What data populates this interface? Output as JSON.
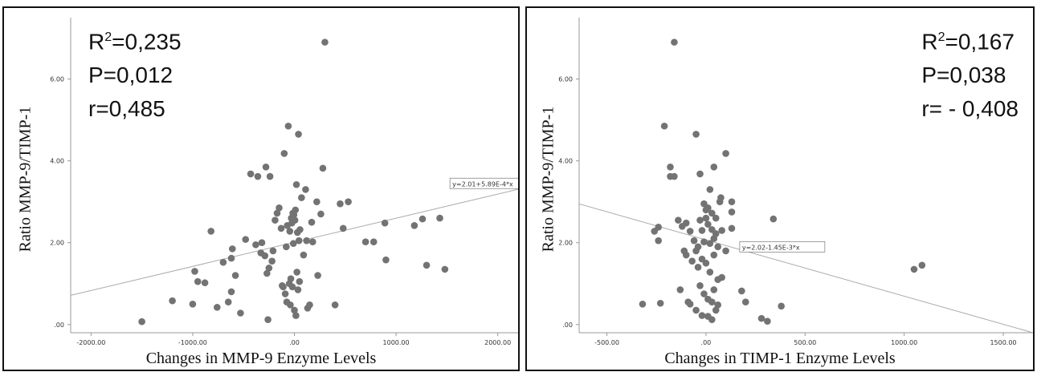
{
  "chart_data": [
    {
      "type": "scatter",
      "xlabel": "Changes in MMP-9 Enzyme Levels",
      "ylabel": "Ratio MMP-9/TIMP-1",
      "xlim": [
        -2200,
        2200
      ],
      "ylim": [
        -0.2,
        7.5
      ],
      "x_ticks": [
        -2000,
        -1000,
        0,
        1000,
        2000
      ],
      "x_tick_labels": [
        "-2000.00",
        "-1000.00",
        ".00",
        "1000.00",
        "2000.00"
      ],
      "y_ticks": [
        0,
        2,
        4,
        6
      ],
      "y_tick_labels": [
        ".00",
        "2.00",
        "4.00",
        "6.00"
      ],
      "stats": {
        "r2_label": "R",
        "r2_value": "=0,235",
        "p": "P=0,012",
        "r": "r=0,485"
      },
      "fit": {
        "intercept": 2.01,
        "slope": 0.000589,
        "label": "y=2.01+5.89E-4*x"
      },
      "points": [
        [
          -1500,
          0.07
        ],
        [
          -1200,
          0.58
        ],
        [
          -1000,
          0.5
        ],
        [
          -980,
          1.3
        ],
        [
          -950,
          1.05
        ],
        [
          -880,
          1.02
        ],
        [
          -820,
          2.28
        ],
        [
          -760,
          0.42
        ],
        [
          -700,
          1.52
        ],
        [
          -650,
          0.55
        ],
        [
          -620,
          1.62
        ],
        [
          -610,
          1.85
        ],
        [
          -620,
          0.8
        ],
        [
          -580,
          1.2
        ],
        [
          -530,
          0.28
        ],
        [
          -480,
          2.08
        ],
        [
          -430,
          3.68
        ],
        [
          -380,
          1.95
        ],
        [
          -360,
          3.62
        ],
        [
          -330,
          1.75
        ],
        [
          -320,
          2.0
        ],
        [
          -290,
          1.68
        ],
        [
          -280,
          3.85
        ],
        [
          -270,
          1.25
        ],
        [
          -250,
          1.38
        ],
        [
          -260,
          0.12
        ],
        [
          -240,
          3.62
        ],
        [
          -220,
          1.55
        ],
        [
          -210,
          1.8
        ],
        [
          -190,
          2.55
        ],
        [
          -170,
          2.72
        ],
        [
          -150,
          2.85
        ],
        [
          -130,
          2.35
        ],
        [
          -120,
          0.95
        ],
        [
          -110,
          0.92
        ],
        [
          -100,
          4.18
        ],
        [
          -90,
          0.75
        ],
        [
          -80,
          1.9
        ],
        [
          -75,
          0.55
        ],
        [
          -70,
          2.42
        ],
        [
          -60,
          4.85
        ],
        [
          -50,
          1.0
        ],
        [
          -45,
          2.28
        ],
        [
          -40,
          0.48
        ],
        [
          -35,
          1.12
        ],
        [
          -30,
          2.6
        ],
        [
          -25,
          2.48
        ],
        [
          -20,
          0.92
        ],
        [
          -15,
          2.72
        ],
        [
          -10,
          1.98
        ],
        [
          -5,
          2.68
        ],
        [
          0,
          0.35
        ],
        [
          5,
          2.55
        ],
        [
          10,
          2.8
        ],
        [
          15,
          0.22
        ],
        [
          20,
          3.42
        ],
        [
          25,
          1.28
        ],
        [
          30,
          2.25
        ],
        [
          35,
          0.85
        ],
        [
          40,
          4.65
        ],
        [
          45,
          2.05
        ],
        [
          50,
          1.05
        ],
        [
          55,
          2.32
        ],
        [
          70,
          3.1
        ],
        [
          90,
          1.7
        ],
        [
          110,
          3.3
        ],
        [
          120,
          2.05
        ],
        [
          130,
          0.4
        ],
        [
          150,
          0.48
        ],
        [
          170,
          2.5
        ],
        [
          180,
          2.02
        ],
        [
          220,
          3.0
        ],
        [
          230,
          1.2
        ],
        [
          260,
          2.7
        ],
        [
          280,
          3.82
        ],
        [
          300,
          6.9
        ],
        [
          400,
          0.48
        ],
        [
          450,
          2.95
        ],
        [
          480,
          2.35
        ],
        [
          530,
          3.0
        ],
        [
          700,
          2.02
        ],
        [
          780,
          2.02
        ],
        [
          900,
          1.58
        ],
        [
          890,
          2.48
        ],
        [
          1180,
          2.42
        ],
        [
          1260,
          2.58
        ],
        [
          1300,
          1.45
        ],
        [
          1430,
          2.6
        ],
        [
          1480,
          1.35
        ]
      ]
    },
    {
      "type": "scatter",
      "xlabel": "Changes in TIMP-1 Enzyme Levels",
      "ylabel": "Ratio MMP-9/TIMP-1",
      "xlim": [
        -640,
        1650
      ],
      "ylim": [
        -0.2,
        7.5
      ],
      "x_ticks": [
        -500,
        0,
        500,
        1000,
        1500
      ],
      "x_tick_labels": [
        "-500.00",
        ".00",
        "500.00",
        "1000.00",
        "1500.00"
      ],
      "y_ticks": [
        0,
        2,
        4,
        6
      ],
      "y_tick_labels": [
        ".00",
        "2.00",
        "4.00",
        "6.00"
      ],
      "stats": {
        "r2_label": "R",
        "r2_value": "=0,167",
        "p": "P=0,038",
        "r": "r= - 0,408"
      },
      "fit": {
        "intercept": 2.02,
        "slope": -0.00145,
        "label": "y=2.02-1.45E-3*x"
      },
      "points": [
        [
          -160,
          6.9
        ],
        [
          -210,
          4.85
        ],
        [
          -50,
          4.65
        ],
        [
          100,
          4.18
        ],
        [
          -180,
          3.85
        ],
        [
          -180,
          3.62
        ],
        [
          -160,
          3.62
        ],
        [
          -30,
          3.68
        ],
        [
          20,
          3.3
        ],
        [
          40,
          3.85
        ],
        [
          -10,
          2.95
        ],
        [
          0,
          2.8
        ],
        [
          10,
          2.85
        ],
        [
          30,
          2.72
        ],
        [
          50,
          2.6
        ],
        [
          70,
          3.0
        ],
        [
          75,
          3.1
        ],
        [
          130,
          3.0
        ],
        [
          -260,
          2.28
        ],
        [
          -240,
          2.38
        ],
        [
          -240,
          2.05
        ],
        [
          -140,
          2.55
        ],
        [
          -120,
          2.4
        ],
        [
          -100,
          2.48
        ],
        [
          -80,
          2.28
        ],
        [
          -60,
          2.05
        ],
        [
          -40,
          1.9
        ],
        [
          -30,
          2.55
        ],
        [
          -20,
          2.3
        ],
        [
          -10,
          2.02
        ],
        [
          0,
          2.6
        ],
        [
          10,
          2.45
        ],
        [
          20,
          1.98
        ],
        [
          30,
          2.32
        ],
        [
          40,
          2.1
        ],
        [
          50,
          2.22
        ],
        [
          60,
          1.9
        ],
        [
          80,
          2.3
        ],
        [
          100,
          1.8
        ],
        [
          130,
          2.75
        ],
        [
          130,
          2.35
        ],
        [
          -110,
          1.8
        ],
        [
          -100,
          1.7
        ],
        [
          -70,
          1.55
        ],
        [
          -50,
          1.8
        ],
        [
          -40,
          1.4
        ],
        [
          -20,
          1.6
        ],
        [
          0,
          1.5
        ],
        [
          20,
          1.28
        ],
        [
          40,
          1.7
        ],
        [
          60,
          1.1
        ],
        [
          80,
          1.15
        ],
        [
          -130,
          0.85
        ],
        [
          -90,
          0.55
        ],
        [
          -80,
          0.5
        ],
        [
          -30,
          0.95
        ],
        [
          -10,
          0.75
        ],
        [
          10,
          0.62
        ],
        [
          30,
          0.55
        ],
        [
          40,
          0.85
        ],
        [
          60,
          0.48
        ],
        [
          -50,
          0.35
        ],
        [
          -20,
          0.22
        ],
        [
          10,
          0.2
        ],
        [
          30,
          0.12
        ],
        [
          50,
          0.35
        ],
        [
          -320,
          0.5
        ],
        [
          -230,
          0.52
        ],
        [
          180,
          0.82
        ],
        [
          200,
          0.55
        ],
        [
          280,
          0.15
        ],
        [
          310,
          0.08
        ],
        [
          340,
          2.58
        ],
        [
          380,
          0.45
        ],
        [
          1050,
          1.35
        ],
        [
          1090,
          1.45
        ]
      ]
    }
  ]
}
